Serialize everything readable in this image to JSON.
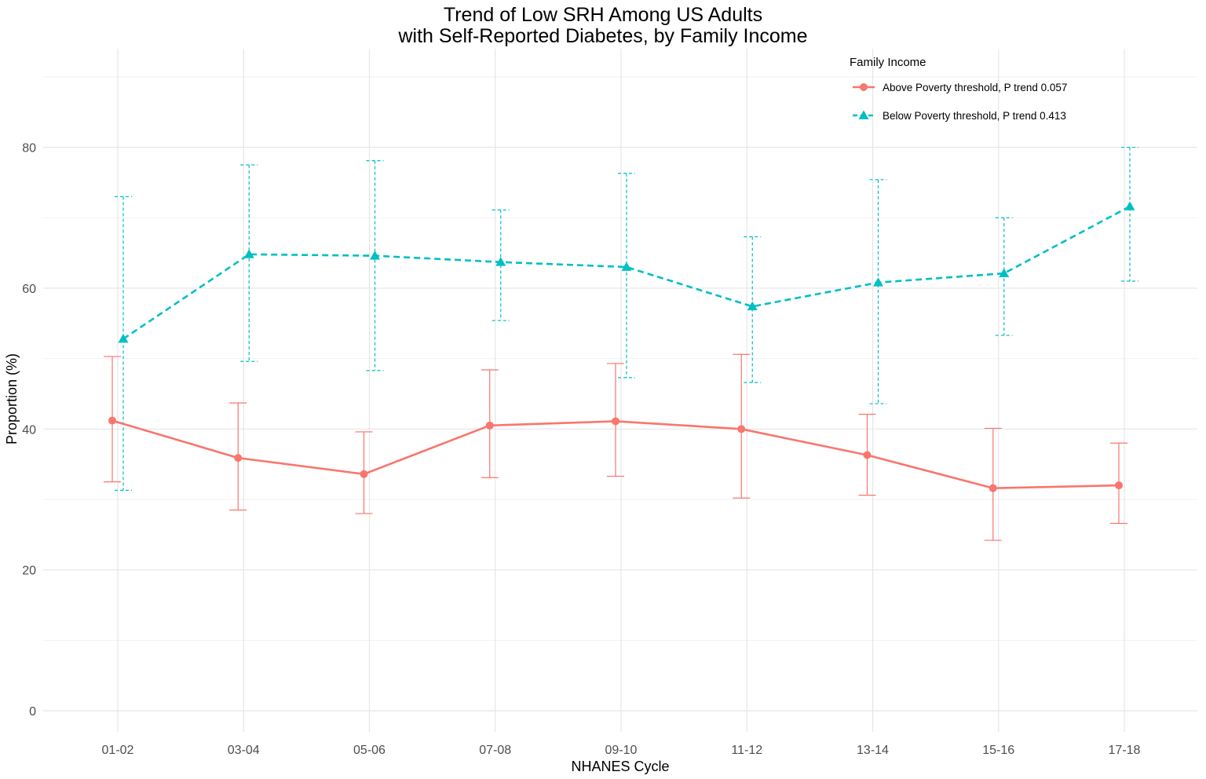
{
  "title_line1": "Trend of Low SRH Among US Adults",
  "title_line2": "with Self-Reported Diabetes, by Family Income",
  "chart_data": {
    "type": "line",
    "title": "Trend of Low SRH Among US Adults with Self-Reported Diabetes, by Family Income",
    "xlabel": "NHANES Cycle",
    "ylabel": "Proportion (%)",
    "categories": [
      "01-02",
      "03-04",
      "05-06",
      "07-08",
      "09-10",
      "11-12",
      "13-14",
      "15-16",
      "17-18"
    ],
    "ylim": [
      -3,
      94
    ],
    "yticks": [
      0,
      20,
      40,
      60,
      80
    ],
    "grid": true,
    "legend": {
      "title": "Family Income",
      "placement": "top-right"
    },
    "series": [
      {
        "name": "Above Poverty threshold, P trend 0.057",
        "color": "#F8766D",
        "marker": "circle",
        "line_style": "solid",
        "values": [
          41.2,
          35.9,
          33.6,
          40.5,
          41.1,
          40.0,
          36.3,
          31.6,
          32.0
        ],
        "ci_lower": [
          32.5,
          28.5,
          28.0,
          33.1,
          33.3,
          30.2,
          30.6,
          24.2,
          26.6
        ],
        "ci_upper": [
          50.3,
          43.7,
          39.6,
          48.4,
          49.3,
          50.6,
          42.1,
          40.1,
          38.0
        ]
      },
      {
        "name": "Below Poverty threshold, P trend 0.413",
        "color": "#00BFC4",
        "marker": "triangle",
        "line_style": "dashed",
        "values": [
          52.8,
          64.8,
          64.6,
          63.7,
          63.0,
          57.4,
          60.8,
          62.1,
          71.6
        ],
        "ci_lower": [
          31.3,
          49.6,
          48.3,
          55.4,
          47.3,
          46.6,
          43.6,
          53.3,
          61.0
        ],
        "ci_upper": [
          73.0,
          77.5,
          78.1,
          71.1,
          76.3,
          67.3,
          75.4,
          70.0,
          80.0
        ]
      }
    ]
  }
}
